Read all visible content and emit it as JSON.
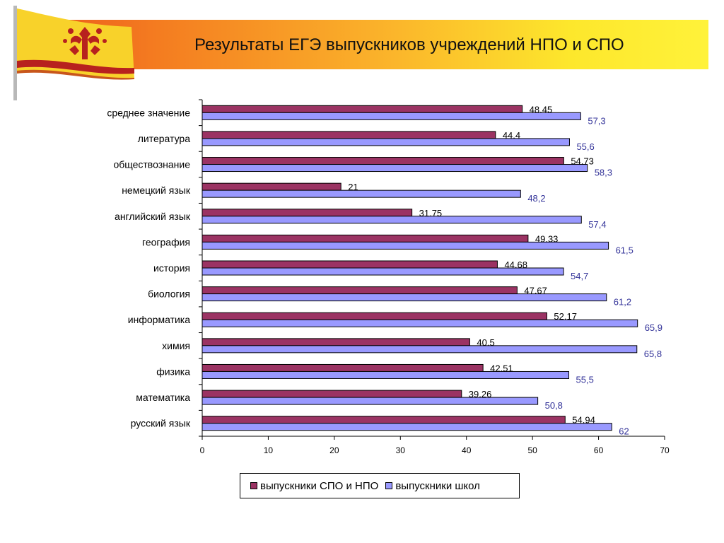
{
  "header": {
    "title": "Результаты ЕГЭ выпускников учреждений НПО и СПО"
  },
  "colors": {
    "series_1": "#9b3363",
    "series_2": "#9999ff",
    "label_1": "#000000",
    "label_2": "#333399"
  },
  "chart_data": {
    "type": "bar",
    "orientation": "horizontal",
    "categories": [
      "среднее значение",
      "литература",
      "обществознание",
      "немецкий язык",
      "английский язык",
      "география",
      "история",
      "биология",
      "информатика",
      "химия",
      "физика",
      "математика",
      "русский язык"
    ],
    "series": [
      {
        "name": "выпускники СПО и НПО",
        "values": [
          48.45,
          44.4,
          54.73,
          21,
          31.75,
          49.33,
          44.68,
          47.67,
          52.17,
          40.5,
          42.51,
          39.26,
          54.94
        ],
        "labels": [
          "48,45",
          "44,4",
          "54,73",
          "21",
          "31,75",
          "49,33",
          "44,68",
          "47,67",
          "52,17",
          "40,5",
          "42,51",
          "39,26",
          "54,94"
        ]
      },
      {
        "name": "выпускники школ",
        "values": [
          57.3,
          55.6,
          58.3,
          48.2,
          57.4,
          61.5,
          54.7,
          61.2,
          65.9,
          65.8,
          55.5,
          50.8,
          62
        ],
        "labels": [
          "57,3",
          "55,6",
          "58,3",
          "48,2",
          "57,4",
          "61,5",
          "54,7",
          "61,2",
          "65,9",
          "65,8",
          "55,5",
          "50,8",
          "62"
        ]
      }
    ],
    "xlim": [
      0,
      70
    ],
    "xticks": [
      0,
      10,
      20,
      30,
      40,
      50,
      60,
      70
    ],
    "title": "Результаты ЕГЭ выпускников учреждений НПО и СПО",
    "xlabel": "",
    "ylabel": "",
    "legend_position": "bottom"
  },
  "legend": {
    "items": [
      {
        "label": "выпускники СПО и НПО"
      },
      {
        "label": "выпускники школ"
      }
    ]
  }
}
